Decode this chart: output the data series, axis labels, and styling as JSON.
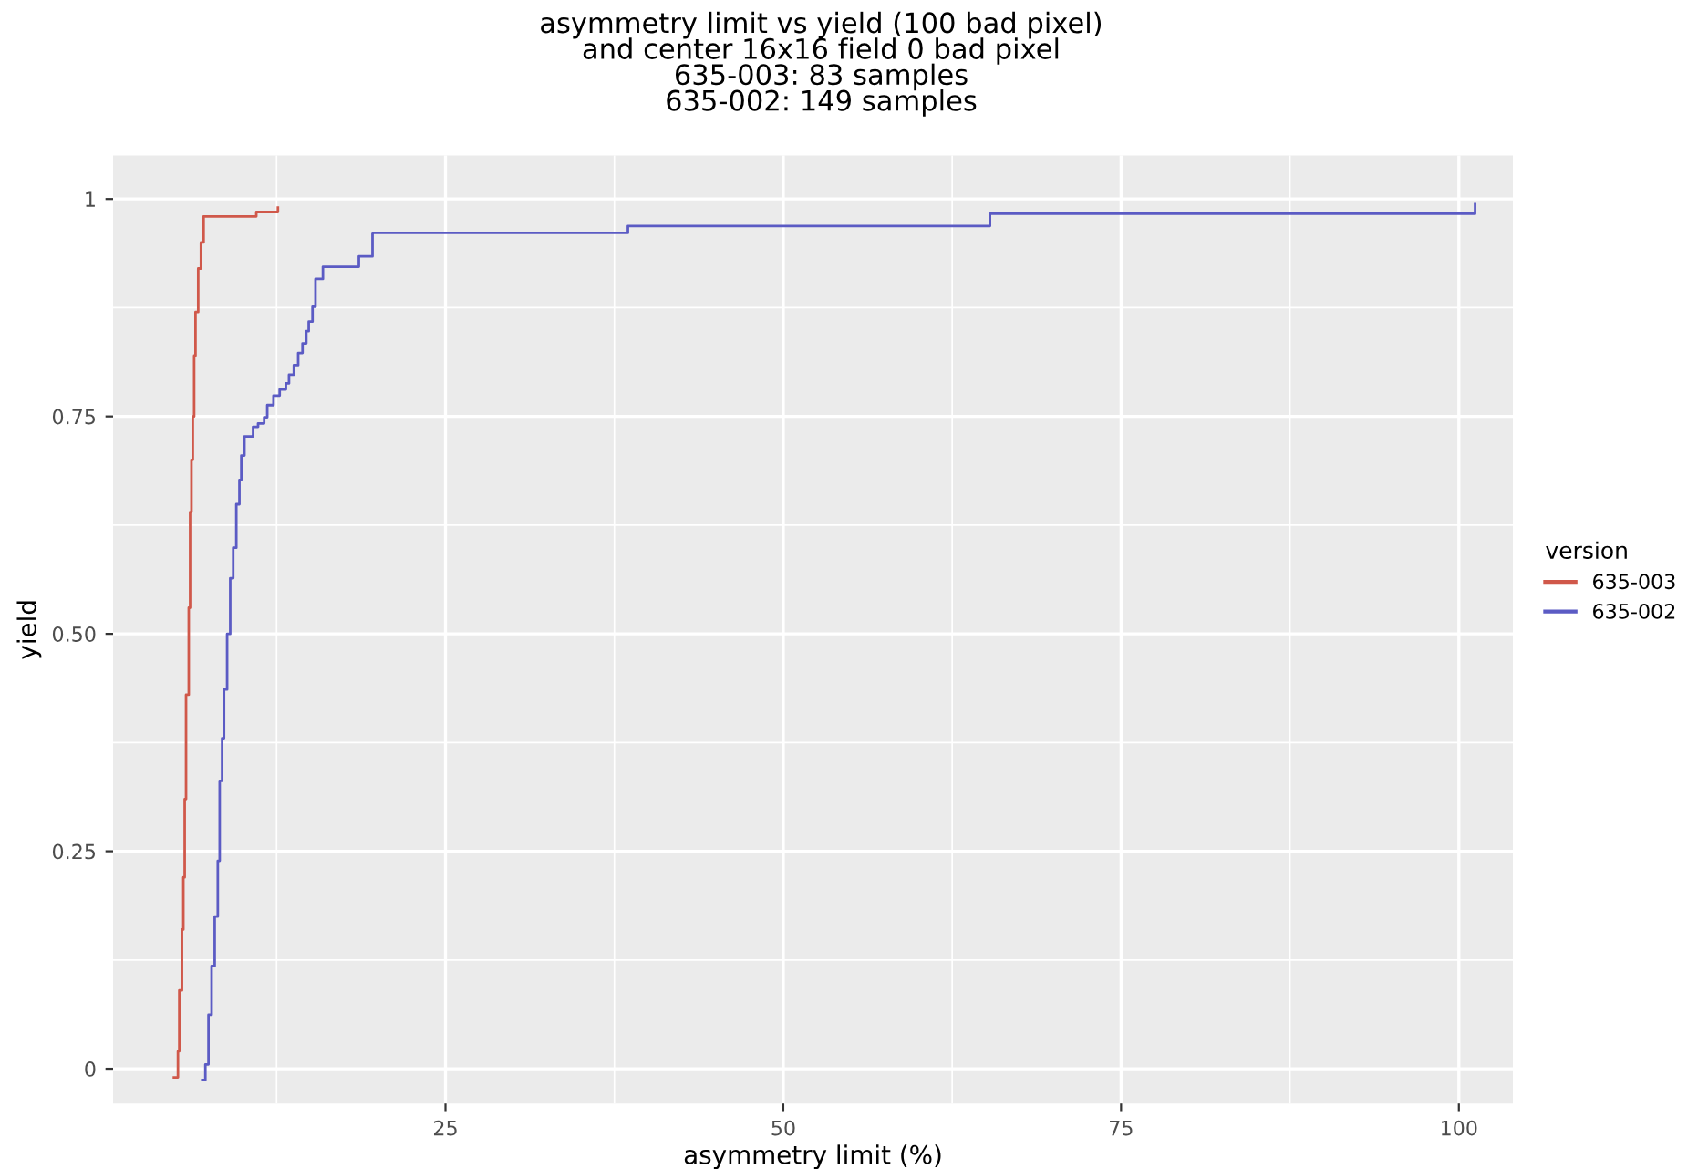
{
  "chart_data": {
    "type": "step",
    "title": "asymmetry limit vs yield (100 bad pixel)\nand center 16x16 field 0 bad pixel\n635-003: 83 samples\n635-002: 149 samples",
    "xlabel": "asymmetry limit (%)",
    "ylabel": "yield",
    "legend_title": "version",
    "legend": "right",
    "grid": true,
    "xlim": [
      0.4,
      104
    ],
    "ylim": [
      -0.04,
      1.05
    ],
    "xticks": [
      25,
      50,
      75,
      100
    ],
    "yticks": [
      0,
      0.25,
      {
        "value": 0.5,
        "label": "0.50"
      },
      0.75,
      1
    ],
    "series": [
      {
        "name": "635-003",
        "color": "#d0584a",
        "x": [
          4.9,
          5.2,
          5.3,
          5.5,
          5.6,
          5.7,
          5.8,
          6.0,
          6.1,
          6.2,
          6.3,
          6.4,
          6.5,
          6.7,
          6.9,
          7.1,
          11.0,
          12.6
        ],
        "values": [
          -0.01,
          0.02,
          0.09,
          0.16,
          0.22,
          0.31,
          0.43,
          0.53,
          0.64,
          0.7,
          0.75,
          0.82,
          0.87,
          0.92,
          0.95,
          0.98,
          0.985,
          0.99
        ]
      },
      {
        "name": "635-002",
        "color": "#5b5bc4",
        "x": [
          7.0,
          7.23,
          7.46,
          7.69,
          7.92,
          8.15,
          8.29,
          8.47,
          8.61,
          8.84,
          9.07,
          9.29,
          9.52,
          9.75,
          9.89,
          10.12,
          10.76,
          11.13,
          11.58,
          11.81,
          12.27,
          12.73,
          13.19,
          13.42,
          13.78,
          14.1,
          14.42,
          14.7,
          14.88,
          15.16,
          15.38,
          15.93,
          18.59,
          19.6,
          38.5,
          65.3,
          101.2
        ],
        "values": [
          -0.013,
          0.005,
          0.062,
          0.118,
          0.175,
          0.239,
          0.331,
          0.38,
          0.436,
          0.5,
          0.564,
          0.599,
          0.649,
          0.677,
          0.705,
          0.727,
          0.738,
          0.742,
          0.749,
          0.763,
          0.774,
          0.781,
          0.788,
          0.798,
          0.809,
          0.823,
          0.834,
          0.848,
          0.859,
          0.876,
          0.908,
          0.922,
          0.934,
          0.961,
          0.969,
          0.983,
          0.994
        ]
      }
    ]
  }
}
